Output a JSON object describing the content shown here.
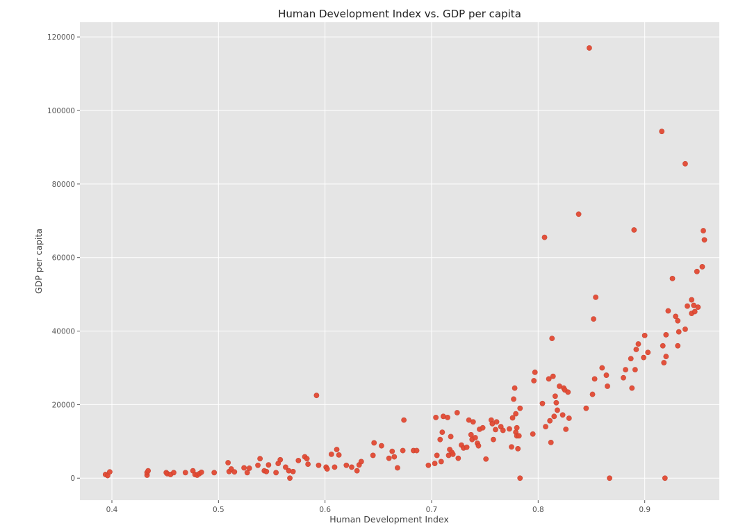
{
  "chart_data": {
    "type": "scatter",
    "title": "Human Development Index vs. GDP per capita",
    "xlabel": "Human Development Index",
    "ylabel": "GDP per capita",
    "xlim": [
      0.37,
      0.97
    ],
    "ylim": [
      -6000,
      124000
    ],
    "xticks": [
      0.4,
      0.5,
      0.6,
      0.7,
      0.8,
      0.9
    ],
    "yticks": [
      0,
      20000,
      40000,
      60000,
      80000,
      100000,
      120000
    ],
    "grid": true,
    "point_color": "#e24a33",
    "background_color": "#e5e5e5",
    "points": [
      [
        0.394,
        1000
      ],
      [
        0.396,
        700
      ],
      [
        0.398,
        1700
      ],
      [
        0.433,
        800
      ],
      [
        0.433,
        1500
      ],
      [
        0.434,
        2000
      ],
      [
        0.451,
        1500
      ],
      [
        0.452,
        1200
      ],
      [
        0.455,
        1000
      ],
      [
        0.458,
        1500
      ],
      [
        0.469,
        1500
      ],
      [
        0.476,
        2000
      ],
      [
        0.478,
        1000
      ],
      [
        0.48,
        800
      ],
      [
        0.482,
        1200
      ],
      [
        0.484,
        1600
      ],
      [
        0.496,
        1500
      ],
      [
        0.509,
        4200
      ],
      [
        0.51,
        1800
      ],
      [
        0.512,
        2500
      ],
      [
        0.515,
        1700
      ],
      [
        0.524,
        2800
      ],
      [
        0.527,
        1500
      ],
      [
        0.529,
        2700
      ],
      [
        0.537,
        3500
      ],
      [
        0.539,
        5300
      ],
      [
        0.543,
        2000
      ],
      [
        0.545,
        1800
      ],
      [
        0.547,
        3600
      ],
      [
        0.554,
        1500
      ],
      [
        0.556,
        4000
      ],
      [
        0.558,
        5000
      ],
      [
        0.563,
        3000
      ],
      [
        0.566,
        2000
      ],
      [
        0.567,
        0
      ],
      [
        0.57,
        1800
      ],
      [
        0.575,
        4800
      ],
      [
        0.581,
        5800
      ],
      [
        0.583,
        5300
      ],
      [
        0.584,
        3800
      ],
      [
        0.592,
        22500
      ],
      [
        0.594,
        3500
      ],
      [
        0.601,
        3000
      ],
      [
        0.602,
        2500
      ],
      [
        0.606,
        6500
      ],
      [
        0.609,
        3000
      ],
      [
        0.611,
        7800
      ],
      [
        0.613,
        6300
      ],
      [
        0.62,
        3500
      ],
      [
        0.625,
        3000
      ],
      [
        0.63,
        2000
      ],
      [
        0.632,
        3600
      ],
      [
        0.634,
        4500
      ],
      [
        0.645,
        6200
      ],
      [
        0.646,
        9600
      ],
      [
        0.653,
        8800
      ],
      [
        0.66,
        5400
      ],
      [
        0.663,
        7300
      ],
      [
        0.665,
        5800
      ],
      [
        0.668,
        2800
      ],
      [
        0.673,
        7500
      ],
      [
        0.674,
        15800
      ],
      [
        0.683,
        7500
      ],
      [
        0.686,
        7500
      ],
      [
        0.697,
        3500
      ],
      [
        0.703,
        4000
      ],
      [
        0.704,
        16500
      ],
      [
        0.705,
        6200
      ],
      [
        0.708,
        10500
      ],
      [
        0.709,
        4500
      ],
      [
        0.71,
        12500
      ],
      [
        0.711,
        16800
      ],
      [
        0.715,
        16500
      ],
      [
        0.716,
        6200
      ],
      [
        0.717,
        7800
      ],
      [
        0.718,
        11300
      ],
      [
        0.719,
        7000
      ],
      [
        0.72,
        6500
      ],
      [
        0.724,
        17800
      ],
      [
        0.725,
        5400
      ],
      [
        0.728,
        9000
      ],
      [
        0.73,
        8200
      ],
      [
        0.733,
        8400
      ],
      [
        0.735,
        15800
      ],
      [
        0.737,
        11800
      ],
      [
        0.738,
        10500
      ],
      [
        0.739,
        15300
      ],
      [
        0.741,
        11000
      ],
      [
        0.743,
        9500
      ],
      [
        0.744,
        8800
      ],
      [
        0.745,
        13300
      ],
      [
        0.748,
        13700
      ],
      [
        0.751,
        5200
      ],
      [
        0.756,
        15800
      ],
      [
        0.757,
        14800
      ],
      [
        0.758,
        10500
      ],
      [
        0.76,
        13200
      ],
      [
        0.761,
        15300
      ],
      [
        0.765,
        14000
      ],
      [
        0.767,
        13000
      ],
      [
        0.773,
        13400
      ],
      [
        0.775,
        8500
      ],
      [
        0.776,
        16400
      ],
      [
        0.777,
        21500
      ],
      [
        0.778,
        24500
      ],
      [
        0.779,
        17500
      ],
      [
        0.779,
        12500
      ],
      [
        0.78,
        11500
      ],
      [
        0.78,
        13700
      ],
      [
        0.781,
        8000
      ],
      [
        0.782,
        11500
      ],
      [
        0.783,
        19000
      ],
      [
        0.783,
        0
      ],
      [
        0.795,
        12000
      ],
      [
        0.796,
        26500
      ],
      [
        0.797,
        28800
      ],
      [
        0.804,
        20300
      ],
      [
        0.806,
        65500
      ],
      [
        0.807,
        14000
      ],
      [
        0.81,
        27000
      ],
      [
        0.811,
        15600
      ],
      [
        0.812,
        9700
      ],
      [
        0.813,
        38000
      ],
      [
        0.814,
        27700
      ],
      [
        0.815,
        16800
      ],
      [
        0.816,
        22300
      ],
      [
        0.817,
        20500
      ],
      [
        0.818,
        18500
      ],
      [
        0.82,
        25000
      ],
      [
        0.823,
        17200
      ],
      [
        0.824,
        24500
      ],
      [
        0.825,
        24000
      ],
      [
        0.826,
        13300
      ],
      [
        0.828,
        23400
      ],
      [
        0.829,
        16300
      ],
      [
        0.838,
        71800
      ],
      [
        0.845,
        19000
      ],
      [
        0.848,
        117000
      ],
      [
        0.851,
        22800
      ],
      [
        0.852,
        43300
      ],
      [
        0.853,
        27000
      ],
      [
        0.854,
        49200
      ],
      [
        0.86,
        30000
      ],
      [
        0.864,
        28000
      ],
      [
        0.865,
        25000
      ],
      [
        0.867,
        0
      ],
      [
        0.88,
        27300
      ],
      [
        0.882,
        29500
      ],
      [
        0.887,
        32500
      ],
      [
        0.888,
        24500
      ],
      [
        0.89,
        67500
      ],
      [
        0.891,
        29500
      ],
      [
        0.892,
        35000
      ],
      [
        0.894,
        36500
      ],
      [
        0.899,
        32800
      ],
      [
        0.9,
        38800
      ],
      [
        0.903,
        34200
      ],
      [
        0.916,
        94300
      ],
      [
        0.917,
        36000
      ],
      [
        0.918,
        31400
      ],
      [
        0.919,
        0
      ],
      [
        0.92,
        39000
      ],
      [
        0.92,
        33100
      ],
      [
        0.922,
        45500
      ],
      [
        0.926,
        54300
      ],
      [
        0.929,
        44000
      ],
      [
        0.931,
        42800
      ],
      [
        0.931,
        36000
      ],
      [
        0.932,
        39800
      ],
      [
        0.938,
        85500
      ],
      [
        0.938,
        40500
      ],
      [
        0.94,
        46800
      ],
      [
        0.944,
        44800
      ],
      [
        0.944,
        48500
      ],
      [
        0.946,
        47000
      ],
      [
        0.947,
        45300
      ],
      [
        0.949,
        56200
      ],
      [
        0.95,
        46500
      ],
      [
        0.954,
        57500
      ],
      [
        0.955,
        67300
      ],
      [
        0.956,
        64800
      ]
    ]
  }
}
